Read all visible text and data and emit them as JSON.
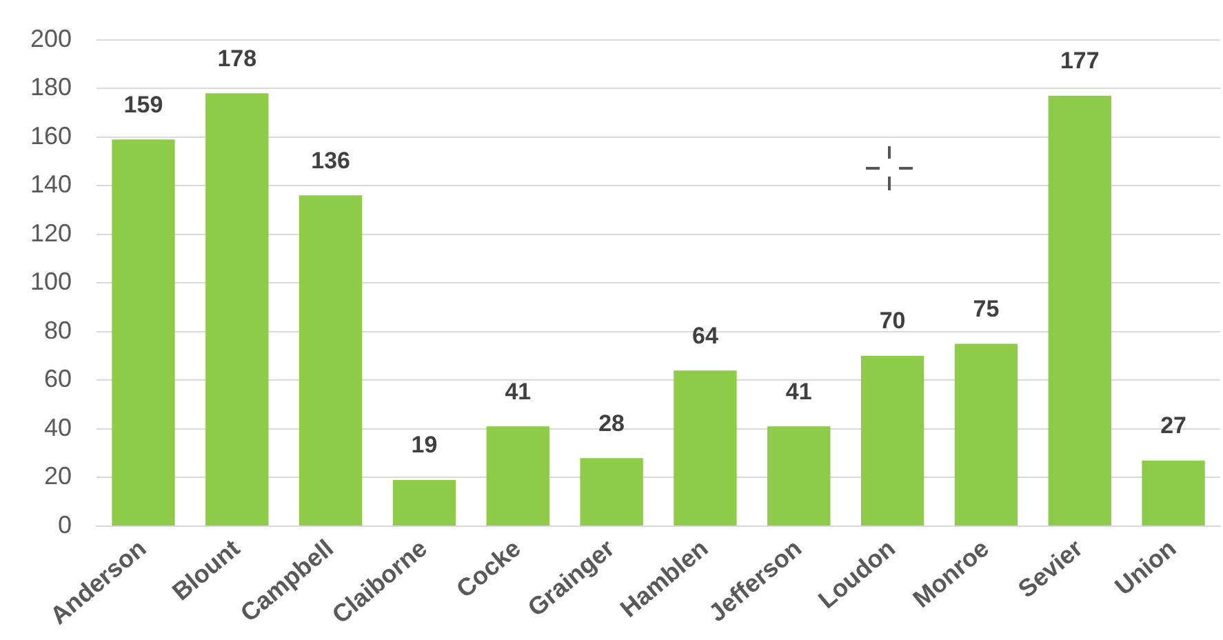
{
  "chart_data": {
    "type": "bar",
    "categories": [
      "Anderson",
      "Blount",
      "Campbell",
      "Claiborne",
      "Cocke",
      "Grainger",
      "Hamblen",
      "Jefferson",
      "Loudon",
      "Monroe",
      "Sevier",
      "Union"
    ],
    "values": [
      159,
      178,
      136,
      19,
      41,
      28,
      64,
      41,
      70,
      75,
      177,
      27
    ],
    "color": "#8dcb48",
    "ylim": [
      0,
      200
    ],
    "yticks": [
      0,
      20,
      40,
      60,
      80,
      100,
      120,
      140,
      160,
      180,
      200
    ],
    "grid": "y",
    "data_labels": true
  }
}
